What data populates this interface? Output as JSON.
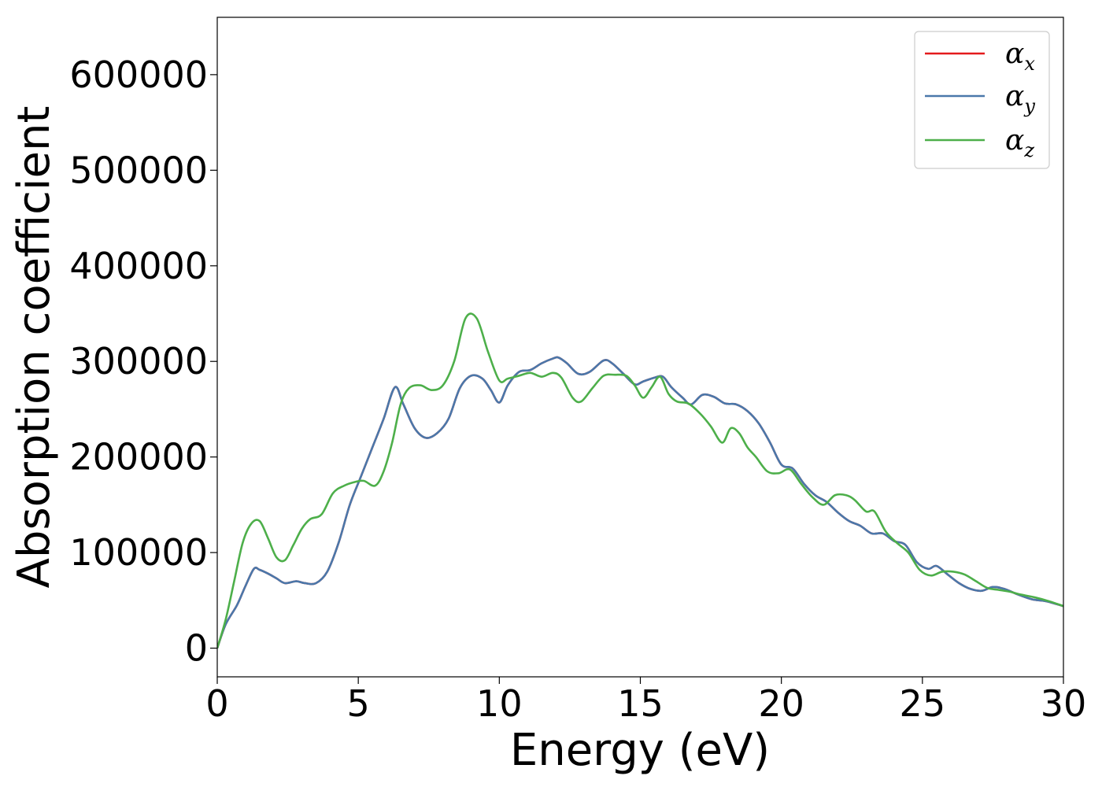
{
  "chart_data": {
    "type": "line",
    "xlabel": "Energy (eV)",
    "ylabel": "Absorption coefficient",
    "xlim": [
      0,
      30
    ],
    "ylim": [
      -30000,
      660000
    ],
    "xticks": [
      0,
      5,
      10,
      15,
      20,
      25,
      30
    ],
    "yticks": [
      0,
      100000,
      200000,
      300000,
      400000,
      500000,
      600000
    ],
    "grid": false,
    "legend_position": "top-right",
    "series": [
      {
        "name": "α_x",
        "label_base": "α",
        "label_sub": "x",
        "color": "#e41a1c",
        "x": [
          0,
          0.3,
          0.7,
          1,
          1.3,
          1.5,
          1.8,
          2.1,
          2.4,
          2.8,
          3.1,
          3.5,
          3.9,
          4.3,
          4.7,
          5.1,
          5.5,
          5.9,
          6.3,
          6.6,
          7,
          7.4,
          7.8,
          8.2,
          8.6,
          9,
          9.4,
          9.7,
          10,
          10.3,
          10.7,
          11.1,
          11.5,
          11.9,
          12.1,
          12.4,
          12.8,
          13.2,
          13.7,
          14,
          14.4,
          14.8,
          15.1,
          15.5,
          15.8,
          16.1,
          16.5,
          16.8,
          17.2,
          17.6,
          18,
          18.4,
          18.8,
          19.2,
          19.6,
          20,
          20.4,
          20.8,
          21.2,
          21.6,
          22,
          22.4,
          22.8,
          23.2,
          23.6,
          24,
          24.4,
          24.8,
          25.2,
          25.5,
          25.9,
          26.3,
          26.7,
          27.1,
          27.5,
          27.9,
          28.4,
          28.9,
          29.4,
          30
        ],
        "y": [
          0,
          25000,
          45000,
          65000,
          83000,
          82000,
          78000,
          73000,
          68000,
          70000,
          68000,
          68000,
          80000,
          110000,
          150000,
          180000,
          210000,
          240000,
          273000,
          255000,
          230000,
          220000,
          225000,
          240000,
          272000,
          285000,
          282000,
          270000,
          257000,
          275000,
          289000,
          291000,
          298000,
          303000,
          304000,
          298000,
          287000,
          289000,
          301000,
          298000,
          287000,
          276000,
          279000,
          283000,
          284000,
          273000,
          262000,
          255000,
          265000,
          263000,
          256000,
          255000,
          248000,
          235000,
          215000,
          192000,
          188000,
          172000,
          160000,
          153000,
          142000,
          133000,
          128000,
          120000,
          120000,
          112000,
          108000,
          90000,
          83000,
          86000,
          77000,
          68000,
          62000,
          60000,
          64000,
          62000,
          56000,
          51000,
          49000,
          44000
        ]
      },
      {
        "name": "α_y",
        "label_base": "α",
        "label_sub": "y",
        "color": "#4a78aa",
        "x": [
          0,
          0.3,
          0.7,
          1,
          1.3,
          1.5,
          1.8,
          2.1,
          2.4,
          2.8,
          3.1,
          3.5,
          3.9,
          4.3,
          4.7,
          5.1,
          5.5,
          5.9,
          6.3,
          6.6,
          7,
          7.4,
          7.8,
          8.2,
          8.6,
          9,
          9.4,
          9.7,
          10,
          10.3,
          10.7,
          11.1,
          11.5,
          11.9,
          12.1,
          12.4,
          12.8,
          13.2,
          13.7,
          14,
          14.4,
          14.8,
          15.1,
          15.5,
          15.8,
          16.1,
          16.5,
          16.8,
          17.2,
          17.6,
          18,
          18.4,
          18.8,
          19.2,
          19.6,
          20,
          20.4,
          20.8,
          21.2,
          21.6,
          22,
          22.4,
          22.8,
          23.2,
          23.6,
          24,
          24.4,
          24.8,
          25.2,
          25.5,
          25.9,
          26.3,
          26.7,
          27.1,
          27.5,
          27.9,
          28.4,
          28.9,
          29.4,
          30
        ],
        "y": [
          0,
          25000,
          45000,
          65000,
          83000,
          82000,
          78000,
          73000,
          68000,
          70000,
          68000,
          68000,
          80000,
          110000,
          150000,
          180000,
          210000,
          240000,
          273000,
          255000,
          230000,
          220000,
          225000,
          240000,
          272000,
          285000,
          282000,
          270000,
          257000,
          275000,
          289000,
          291000,
          298000,
          303000,
          304000,
          298000,
          287000,
          289000,
          301000,
          298000,
          287000,
          276000,
          279000,
          283000,
          284000,
          273000,
          262000,
          255000,
          265000,
          263000,
          256000,
          255000,
          248000,
          235000,
          215000,
          192000,
          188000,
          172000,
          160000,
          153000,
          142000,
          133000,
          128000,
          120000,
          120000,
          112000,
          108000,
          90000,
          83000,
          86000,
          77000,
          68000,
          62000,
          60000,
          64000,
          62000,
          56000,
          51000,
          49000,
          44000
        ]
      },
      {
        "name": "α_z",
        "label_base": "α",
        "label_sub": "z",
        "color": "#4daf4a",
        "x": [
          0,
          0.3,
          0.6,
          0.9,
          1.2,
          1.5,
          1.8,
          2.1,
          2.4,
          2.7,
          3,
          3.3,
          3.7,
          4.1,
          4.5,
          4.9,
          5.2,
          5.6,
          5.9,
          6.2,
          6.5,
          6.8,
          7.2,
          7.6,
          8,
          8.4,
          8.8,
          9.2,
          9.6,
          10,
          10.3,
          10.7,
          11.1,
          11.5,
          11.9,
          12.2,
          12.6,
          12.9,
          13.3,
          13.7,
          14.1,
          14.5,
          14.8,
          15.1,
          15.4,
          15.7,
          16,
          16.3,
          16.7,
          17.1,
          17.5,
          17.9,
          18.2,
          18.5,
          18.8,
          19.1,
          19.5,
          19.9,
          20.3,
          20.7,
          21.1,
          21.5,
          21.9,
          22.3,
          22.6,
          23,
          23.3,
          23.7,
          24.1,
          24.5,
          24.9,
          25.3,
          25.7,
          26.1,
          26.5,
          26.9,
          27.3,
          27.7,
          28.1,
          28.5,
          29,
          29.5,
          30
        ],
        "y": [
          0,
          30000,
          70000,
          110000,
          130000,
          133000,
          115000,
          95000,
          92000,
          108000,
          125000,
          135000,
          140000,
          162000,
          170000,
          174000,
          175000,
          170000,
          185000,
          215000,
          255000,
          272000,
          275000,
          270000,
          275000,
          300000,
          345000,
          345000,
          310000,
          280000,
          282000,
          285000,
          288000,
          284000,
          288000,
          283000,
          262000,
          258000,
          272000,
          285000,
          286000,
          285000,
          275000,
          262000,
          273000,
          284000,
          266000,
          258000,
          256000,
          246000,
          232000,
          215000,
          230000,
          225000,
          210000,
          200000,
          185000,
          183000,
          187000,
          172000,
          158000,
          150000,
          160000,
          160000,
          155000,
          143000,
          143000,
          122000,
          110000,
          100000,
          82000,
          76000,
          80000,
          80000,
          77000,
          70000,
          63000,
          61000,
          59000,
          56000,
          53000,
          49000,
          44000
        ]
      }
    ]
  }
}
